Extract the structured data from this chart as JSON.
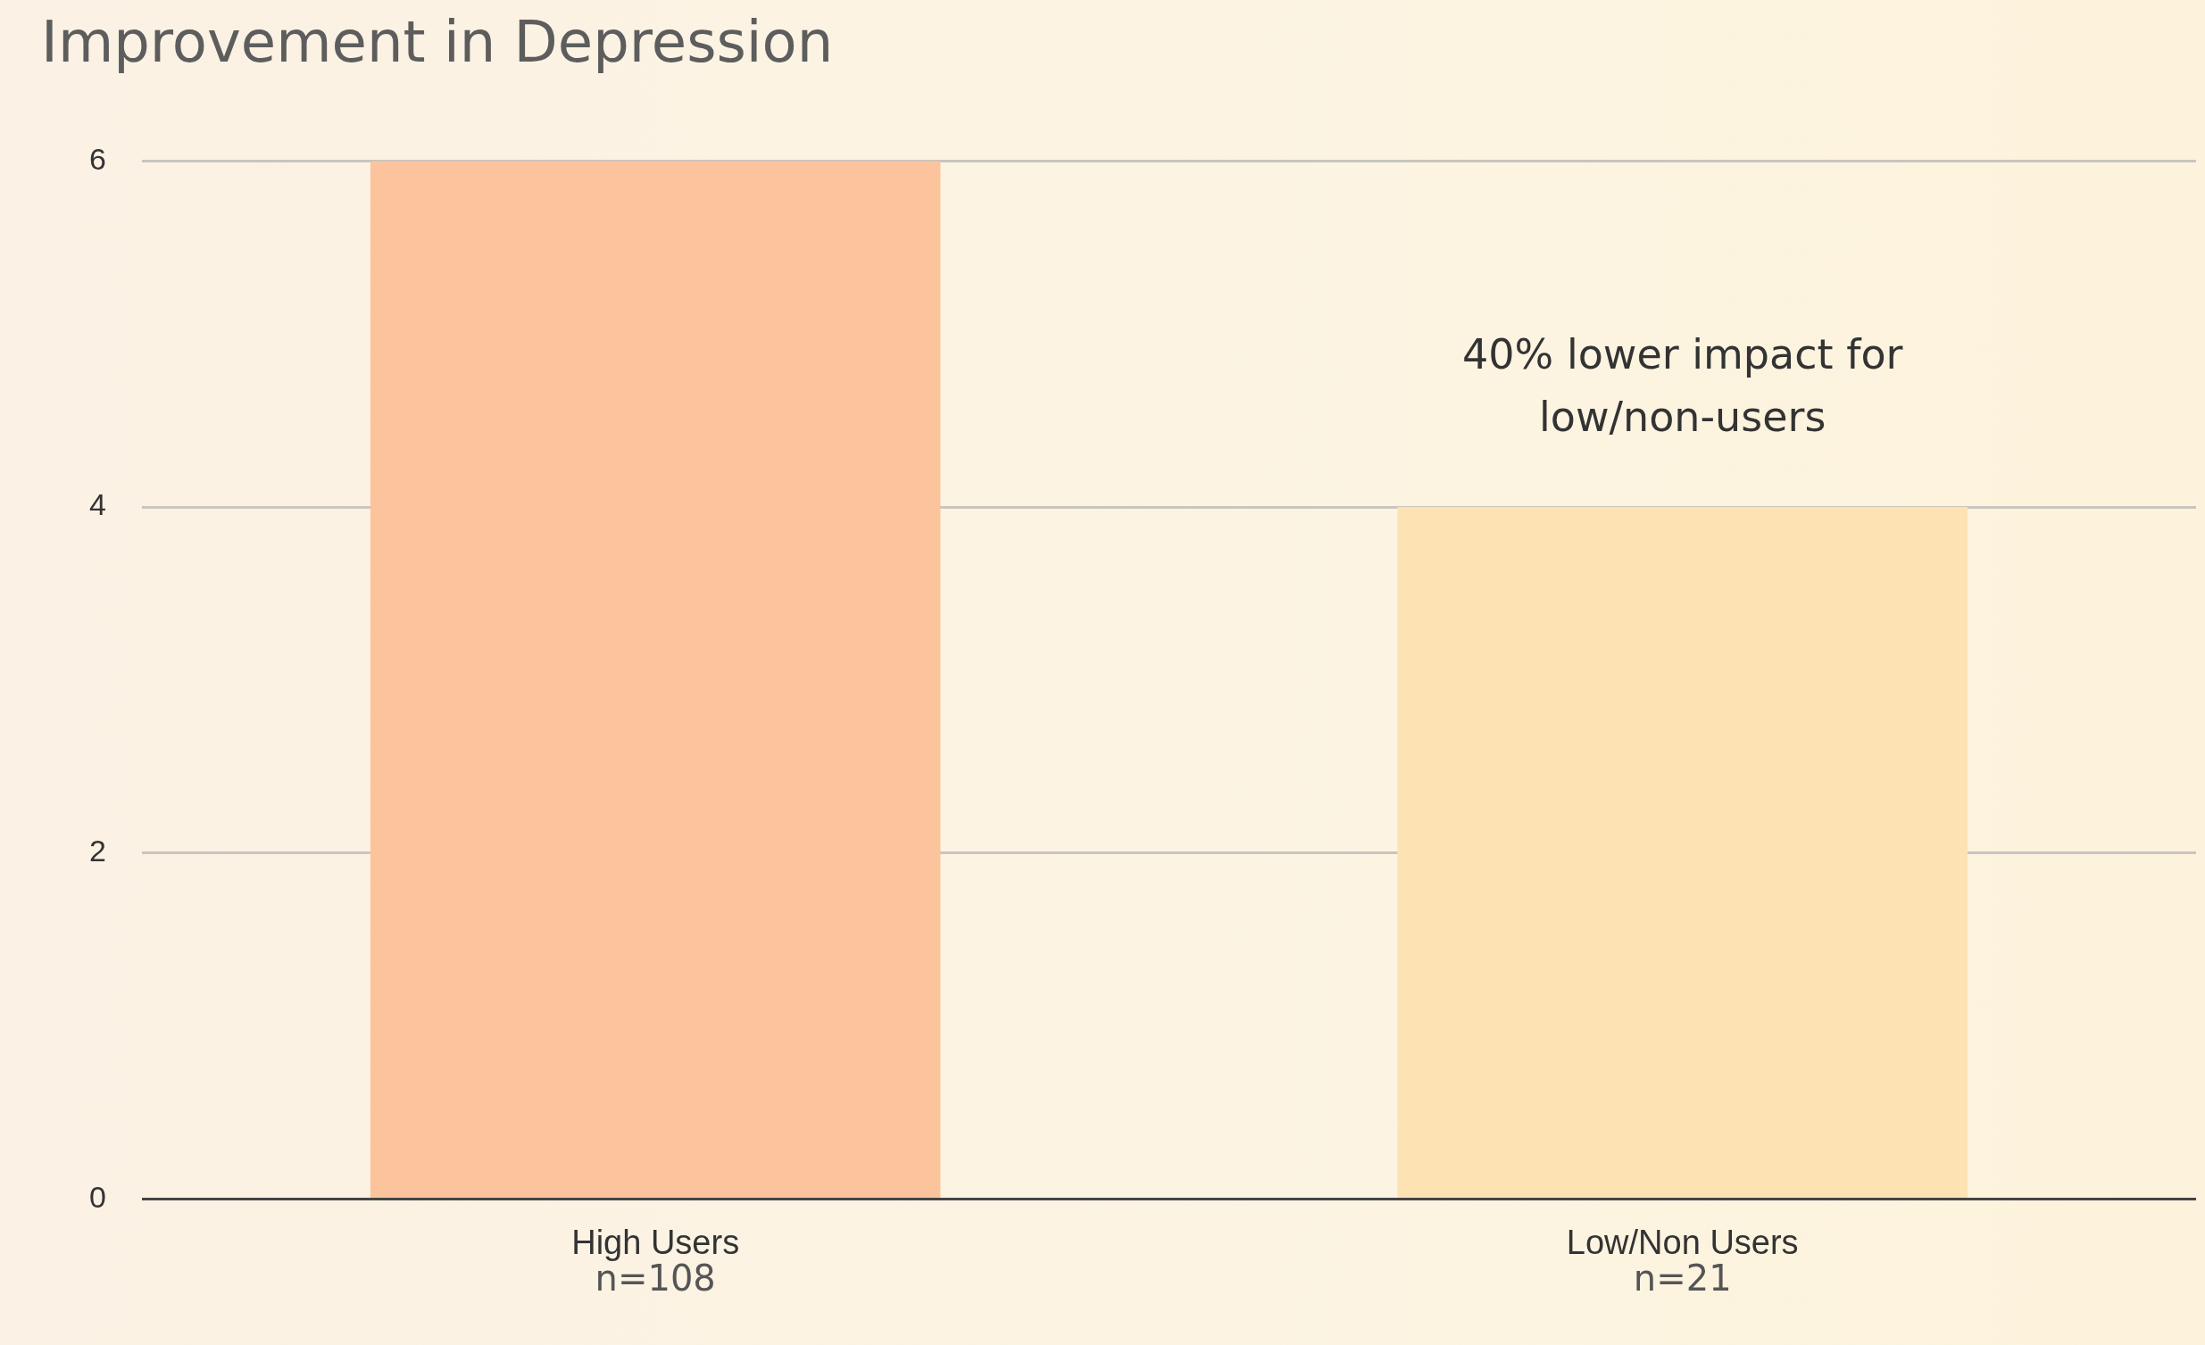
{
  "chart_data": {
    "type": "bar",
    "title": "Improvement in Depression",
    "categories": [
      "High Users",
      "Low/Non Users"
    ],
    "values": [
      6,
      4
    ],
    "colors": [
      "#fcc49c",
      "#fde2b4"
    ],
    "ylim": [
      0,
      6
    ],
    "yticks": [
      0,
      2,
      4,
      6
    ],
    "grid": "y",
    "legend": false,
    "annotations": [
      "n=108",
      "n=21",
      "40% lower impact for low/non-users"
    ]
  }
}
